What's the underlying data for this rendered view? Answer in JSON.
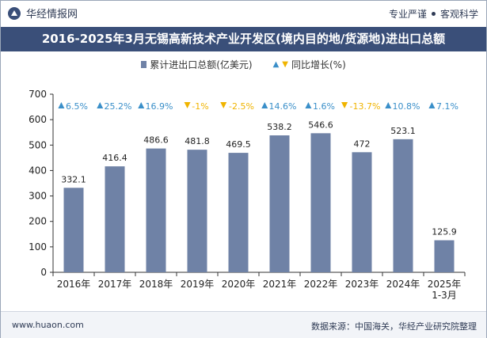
{
  "header": {
    "brand_name": "华经情报网",
    "slogan_left": "专业严谨",
    "slogan_right": "客观科学"
  },
  "footer": {
    "website": "www.huaon.com",
    "source": "数据来源：中国海关，华经产业研究院整理"
  },
  "colors": {
    "title_bg": "#3a4f79",
    "bar": "#6f82a6",
    "growth_up": "#3a8fc9",
    "growth_down": "#f0b400"
  },
  "chart_data": {
    "type": "bar",
    "title": "2016-2025年3月无锡高新技术产业开发区(境内目的地/货源地)进出口总额",
    "legend": [
      "累计进出口总额(亿美元)",
      "同比增长(%)"
    ],
    "categories": [
      "2016年",
      "2017年",
      "2018年",
      "2019年",
      "2020年",
      "2021年",
      "2022年",
      "2023年",
      "2024年",
      "2025年\n1-3月"
    ],
    "series": [
      {
        "name": "累计进出口总额(亿美元)",
        "values": [
          332.1,
          416.4,
          486.6,
          481.8,
          469.5,
          538.2,
          546.6,
          472,
          523.1,
          125.9
        ]
      },
      {
        "name": "同比增长(%)",
        "values": [
          6.5,
          25.2,
          16.9,
          -1,
          -2.5,
          14.6,
          1.6,
          -13.7,
          10.8,
          7.1
        ]
      }
    ],
    "value_labels": [
      "332.1",
      "416.4",
      "486.6",
      "481.8",
      "469.5",
      "538.2",
      "546.6",
      "472",
      "523.1",
      "125.9"
    ],
    "growth_labels": [
      "6.5%",
      "25.2%",
      "16.9%",
      "-1%",
      "-2.5%",
      "14.6%",
      "1.6%",
      "-13.7%",
      "10.8%",
      "7.1%"
    ],
    "yticks": [
      "0",
      "100",
      "200",
      "300",
      "400",
      "500",
      "600",
      "700"
    ],
    "ylim": [
      0,
      700
    ],
    "grid": false
  }
}
